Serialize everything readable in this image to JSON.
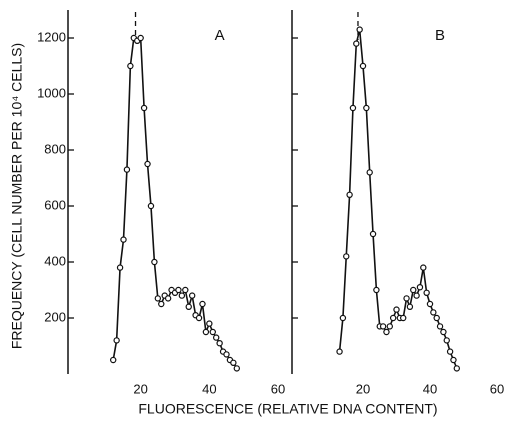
{
  "chart_data": [
    {
      "type": "line",
      "panel_label": "A",
      "ylabel": "FREQUENCY (CELL NUMBER PER 10⁴ CELLS)",
      "xlabel": "FLUORESCENCE (RELATIVE DNA CONTENT)",
      "color": "#111111",
      "marker": "open-circle",
      "mode_line": 18.5,
      "x": [
        12,
        13,
        14,
        15,
        16,
        17,
        18,
        19,
        20,
        21,
        22,
        23,
        24,
        25,
        26,
        27,
        28,
        29,
        30,
        31,
        32,
        33,
        34,
        35,
        36,
        37,
        38,
        39,
        40,
        41,
        42,
        43,
        44,
        45,
        46,
        47,
        48
      ],
      "values": [
        50,
        120,
        380,
        480,
        730,
        1100,
        1200,
        1190,
        1200,
        950,
        750,
        600,
        400,
        270,
        250,
        280,
        270,
        300,
        290,
        300,
        280,
        300,
        240,
        280,
        210,
        200,
        250,
        150,
        180,
        150,
        130,
        110,
        80,
        70,
        50,
        40,
        20
      ],
      "xlim": [
        0,
        60
      ],
      "xticks": [
        20,
        40,
        60
      ],
      "ylim": [
        0,
        1300
      ],
      "yticks": [
        200,
        400,
        600,
        800,
        1000,
        1200
      ]
    },
    {
      "type": "line",
      "panel_label": "B",
      "color": "#111111",
      "marker": "open-circle",
      "mode_line": 18.5,
      "x": [
        13,
        14,
        15,
        16,
        17,
        18,
        19,
        20,
        21,
        22,
        23,
        24,
        25,
        26,
        27,
        28,
        29,
        30,
        31,
        32,
        33,
        34,
        35,
        36,
        37,
        38,
        39,
        40,
        41,
        42,
        43,
        44,
        45,
        46,
        47,
        48
      ],
      "values": [
        80,
        200,
        420,
        640,
        950,
        1180,
        1230,
        1100,
        950,
        720,
        500,
        300,
        170,
        170,
        150,
        170,
        200,
        230,
        200,
        200,
        270,
        240,
        300,
        280,
        310,
        380,
        290,
        250,
        220,
        200,
        170,
        150,
        120,
        80,
        50,
        20
      ],
      "xlim": [
        0,
        60
      ],
      "xticks": [
        20,
        40,
        60
      ],
      "ylim": [
        0,
        1300
      ],
      "yticks": [
        200,
        400,
        600,
        800,
        1000,
        1200
      ]
    }
  ]
}
